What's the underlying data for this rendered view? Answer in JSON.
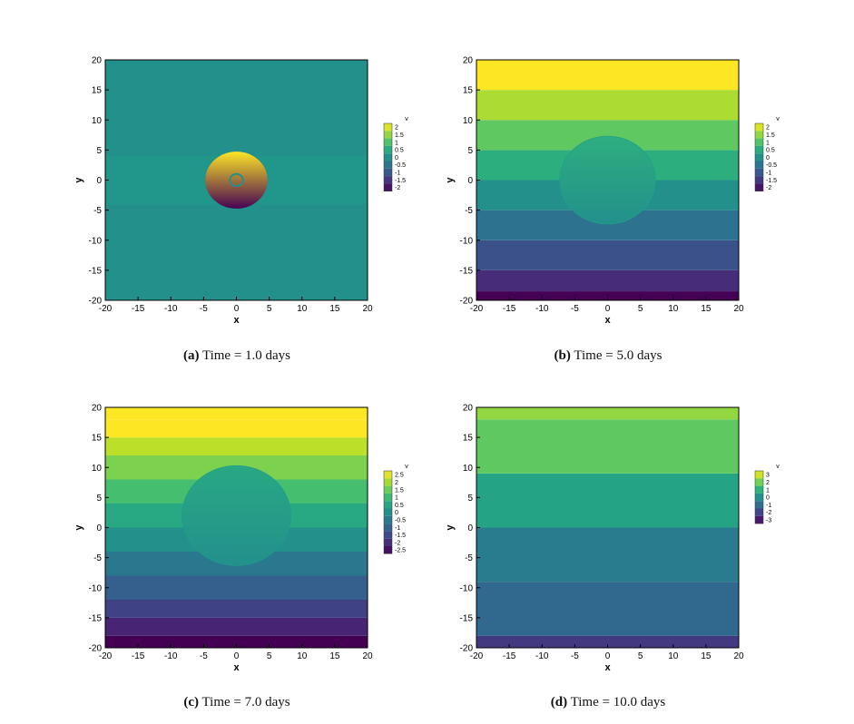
{
  "chart_data": [
    {
      "type": "heatmap",
      "panel_label": "(a)",
      "caption": "Time = 1.0 days",
      "xlabel": "x",
      "ylabel": "y",
      "xlim": [
        -20,
        20
      ],
      "ylim": [
        -20,
        20
      ],
      "xticks": [
        "-20",
        "-15",
        "-10",
        "-5",
        "0",
        "5",
        "10",
        "15",
        "20"
      ],
      "yticks": [
        "-20",
        "-15",
        "-10",
        "-5",
        "0",
        "5",
        "10",
        "15",
        "20"
      ],
      "colorbar_title": "v",
      "colorbar_levels": [
        "2",
        "1.5",
        "1",
        "0.5",
        "0",
        "-0.5",
        "-1",
        "-1.5",
        "-2"
      ],
      "colorbar_range": [
        -2,
        2
      ],
      "bands": [
        {
          "y0": -20,
          "y1": -4,
          "v": 0.0
        },
        {
          "y0": -4,
          "y1": 4,
          "v": 0.1
        },
        {
          "y0": 4,
          "y1": 20,
          "v": 0.0
        }
      ],
      "disk": {
        "cx": 0,
        "cy": 0,
        "r": 4.8,
        "vmin": -2.0,
        "vmax": 2.0,
        "hole_r": 1.0
      }
    },
    {
      "type": "heatmap",
      "panel_label": "(b)",
      "caption": "Time = 5.0 days",
      "xlabel": "x",
      "ylabel": "y",
      "xlim": [
        -20,
        20
      ],
      "ylim": [
        -20,
        20
      ],
      "xticks": [
        "-20",
        "-15",
        "-10",
        "-5",
        "0",
        "5",
        "10",
        "15",
        "20"
      ],
      "yticks": [
        "-20",
        "-15",
        "-10",
        "-5",
        "0",
        "5",
        "10",
        "15",
        "20"
      ],
      "colorbar_title": "v",
      "colorbar_levels": [
        "2",
        "1.5",
        "1",
        "0.5",
        "0",
        "-0.5",
        "-1",
        "-1.5",
        "-2"
      ],
      "colorbar_range": [
        -2,
        2
      ],
      "bands": [
        {
          "y0": -20,
          "y1": -18.5,
          "v": -2.0
        },
        {
          "y0": -18.5,
          "y1": -15,
          "v": -1.5
        },
        {
          "y0": -15,
          "y1": -10,
          "v": -1.0
        },
        {
          "y0": -10,
          "y1": -5,
          "v": -0.5
        },
        {
          "y0": -5,
          "y1": 0,
          "v": 0.0
        },
        {
          "y0": 0,
          "y1": 5,
          "v": 0.5
        },
        {
          "y0": 5,
          "y1": 10,
          "v": 1.0
        },
        {
          "y0": 10,
          "y1": 15,
          "v": 1.5
        },
        {
          "y0": 15,
          "y1": 20,
          "v": 2.0
        }
      ],
      "disk": {
        "cx": 0,
        "cy": 0,
        "r": 7.3,
        "vmin": 0.0,
        "vmax": 0.5,
        "hole_r": 0
      }
    },
    {
      "type": "heatmap",
      "panel_label": "(c)",
      "caption": "Time = 7.0 days",
      "xlabel": "x",
      "ylabel": "y",
      "xlim": [
        -20,
        20
      ],
      "ylim": [
        -20,
        20
      ],
      "xticks": [
        "-20",
        "-15",
        "-10",
        "-5",
        "0",
        "5",
        "10",
        "15",
        "20"
      ],
      "yticks": [
        "-20",
        "-15",
        "-10",
        "-5",
        "0",
        "5",
        "10",
        "15",
        "20"
      ],
      "colorbar_title": "v",
      "colorbar_levels": [
        "2.5",
        "2",
        "1.5",
        "1",
        "0.5",
        "0",
        "-0.5",
        "-1",
        "-1.5",
        "-2",
        "-2.5"
      ],
      "colorbar_range": [
        -2.5,
        2.5
      ],
      "bands": [
        {
          "y0": -20,
          "y1": -18,
          "v": -2.5
        },
        {
          "y0": -18,
          "y1": -15,
          "v": -2.0
        },
        {
          "y0": -15,
          "y1": -12,
          "v": -1.5
        },
        {
          "y0": -12,
          "y1": -8,
          "v": -1.0
        },
        {
          "y0": -8,
          "y1": -4,
          "v": -0.5
        },
        {
          "y0": -4,
          "y1": 0,
          "v": 0.0
        },
        {
          "y0": 0,
          "y1": 4,
          "v": 0.5
        },
        {
          "y0": 4,
          "y1": 8,
          "v": 1.0
        },
        {
          "y0": 8,
          "y1": 12,
          "v": 1.5
        },
        {
          "y0": 12,
          "y1": 15,
          "v": 2.0
        },
        {
          "y0": 15,
          "y1": 18,
          "v": 2.5
        },
        {
          "y0": 18,
          "y1": 20,
          "v": 2.5
        }
      ],
      "disk": {
        "cx": 0,
        "cy": 2,
        "r": 8.3,
        "vmin": 0.0,
        "vmax": 0.5,
        "hole_r": 0
      }
    },
    {
      "type": "heatmap",
      "panel_label": "(d)",
      "caption": "Time = 10.0 days",
      "xlabel": "x",
      "ylabel": "y",
      "xlim": [
        -20,
        20
      ],
      "ylim": [
        -20,
        20
      ],
      "xticks": [
        "-20",
        "-15",
        "-10",
        "-5",
        "0",
        "5",
        "10",
        "15",
        "20"
      ],
      "yticks": [
        "-20",
        "-15",
        "-10",
        "-5",
        "0",
        "5",
        "10",
        "15",
        "20"
      ],
      "colorbar_title": "v",
      "colorbar_levels": [
        "3",
        "2",
        "1",
        "0",
        "-1",
        "-2",
        "-3"
      ],
      "colorbar_range": [
        -3,
        3
      ],
      "bands": [
        {
          "y0": -20,
          "y1": -18,
          "v": -2.0
        },
        {
          "y0": -18,
          "y1": -9,
          "v": -1.0
        },
        {
          "y0": -9,
          "y1": 0,
          "v": -0.5
        },
        {
          "y0": 0,
          "y1": 9,
          "v": 0.5
        },
        {
          "y0": 9,
          "y1": 18,
          "v": 1.5
        },
        {
          "y0": 18,
          "y1": 20,
          "v": 2.0
        }
      ],
      "disk": null
    }
  ]
}
